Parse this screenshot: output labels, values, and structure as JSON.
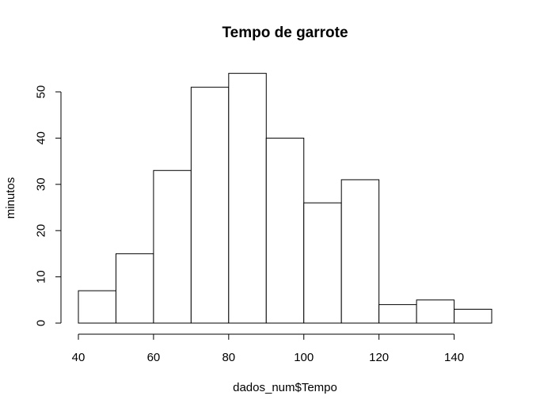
{
  "chart_data": {
    "type": "bar",
    "title": "Tempo de garrote",
    "xlabel": "dados_num$Tempo",
    "ylabel": "minutos",
    "bins": [
      {
        "start": 40,
        "end": 50,
        "count": 7
      },
      {
        "start": 50,
        "end": 60,
        "count": 15
      },
      {
        "start": 60,
        "end": 70,
        "count": 33
      },
      {
        "start": 70,
        "end": 80,
        "count": 51
      },
      {
        "start": 80,
        "end": 90,
        "count": 54
      },
      {
        "start": 90,
        "end": 100,
        "count": 40
      },
      {
        "start": 100,
        "end": 110,
        "count": 26
      },
      {
        "start": 110,
        "end": 120,
        "count": 31
      },
      {
        "start": 120,
        "end": 130,
        "count": 4
      },
      {
        "start": 130,
        "end": 140,
        "count": 5
      },
      {
        "start": 140,
        "end": 150,
        "count": 3
      }
    ],
    "xticks": [
      "40",
      "60",
      "80",
      "100",
      "120",
      "140"
    ],
    "yticks": [
      "0",
      "10",
      "20",
      "30",
      "40",
      "50"
    ],
    "xlim": [
      40,
      150
    ],
    "ylim": [
      0,
      54
    ],
    "grid": false,
    "legend": "none"
  }
}
